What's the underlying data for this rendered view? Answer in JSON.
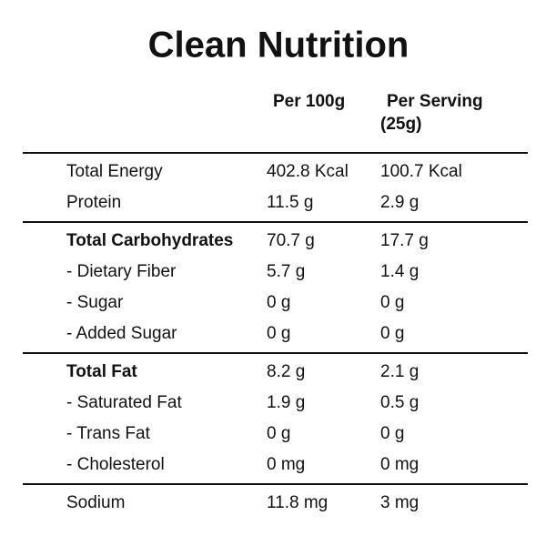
{
  "title": "Clean Nutrition",
  "header": {
    "columns": [
      {
        "label": "Per 100g"
      },
      {
        "label": "Per Serving",
        "sub": "(25g)"
      }
    ]
  },
  "sections": [
    {
      "rows": [
        {
          "label": "Total Energy",
          "values": [
            "402.8 Kcal",
            "100.7 Kcal"
          ]
        },
        {
          "label": "Protein",
          "values": [
            "11.5 g",
            "2.9 g"
          ]
        }
      ]
    },
    {
      "rows": [
        {
          "label": "Total Carbohydrates",
          "values": [
            "70.7 g",
            "17.7 g"
          ],
          "emphasis": true
        },
        {
          "label": "- Dietary Fiber",
          "values": [
            "5.7 g",
            "1.4 g"
          ]
        },
        {
          "label": "- Sugar",
          "values": [
            "0 g",
            "0 g"
          ]
        },
        {
          "label": "- Added Sugar",
          "values": [
            "0 g",
            "0 g"
          ]
        }
      ]
    },
    {
      "rows": [
        {
          "label": "Total Fat",
          "values": [
            "8.2 g",
            "2.1 g"
          ],
          "emphasis": true
        },
        {
          "label": "- Saturated Fat",
          "values": [
            "1.9 g",
            "0.5 g"
          ]
        },
        {
          "label": "- Trans Fat",
          "values": [
            "0 g",
            "0 g"
          ]
        },
        {
          "label": "- Cholesterol",
          "values": [
            "0 mg",
            "0 mg"
          ]
        }
      ]
    },
    {
      "rows": [
        {
          "label": "Sodium",
          "values": [
            "11.8 mg",
            "3 mg"
          ]
        }
      ]
    }
  ]
}
